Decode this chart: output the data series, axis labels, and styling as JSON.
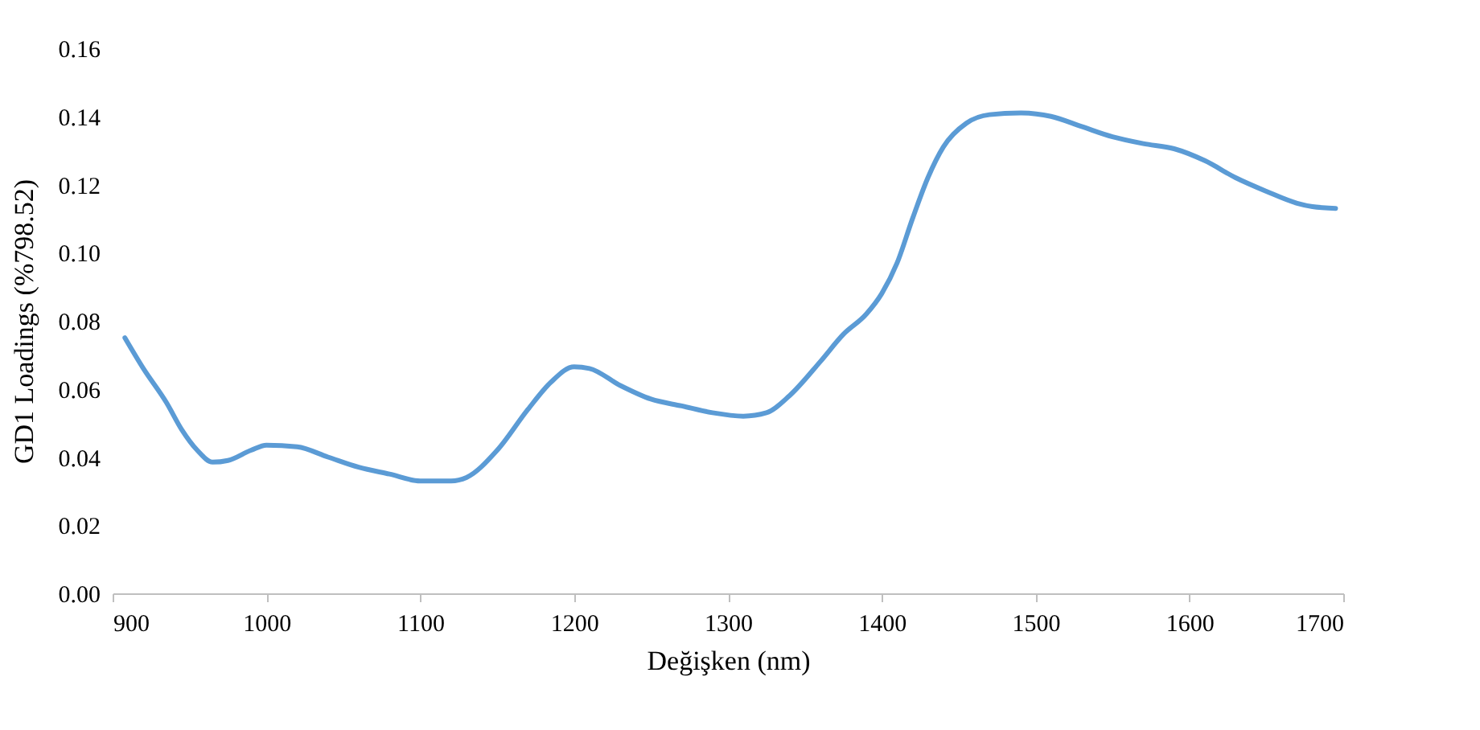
{
  "chart_data": {
    "type": "line",
    "xlabel": "Değişken (nm)",
    "ylabel": "GD1 Loadings (%798.52)",
    "xlim": [
      900,
      1700
    ],
    "xticks": [
      900,
      1000,
      1100,
      1200,
      1300,
      1400,
      1500,
      1600,
      1700
    ],
    "ylim": [
      0,
      0.16
    ],
    "yticks": [
      {
        "value": 0,
        "label": "0.00"
      },
      {
        "value": 0.02,
        "label": "0.02"
      },
      {
        "value": 0.04,
        "label": "0.04"
      },
      {
        "value": 0.06,
        "label": "0.06"
      },
      {
        "value": 0.08,
        "label": "0.08"
      },
      {
        "value": 0.1,
        "label": "0.10"
      },
      {
        "value": 0.12,
        "label": "0.12"
      },
      {
        "value": 0.14,
        "label": "0.14"
      },
      {
        "value": 0.16,
        "label": "0.16"
      }
    ],
    "grid": false,
    "legend": false,
    "x": [
      908,
      920,
      935,
      945,
      955,
      965,
      975,
      990,
      1000,
      1020,
      1040,
      1060,
      1080,
      1100,
      1120,
      1130,
      1150,
      1170,
      1185,
      1200,
      1210,
      1230,
      1250,
      1270,
      1290,
      1310,
      1325,
      1340,
      1360,
      1375,
      1390,
      1400,
      1410,
      1420,
      1430,
      1440,
      1455,
      1470,
      1490,
      1510,
      1530,
      1550,
      1570,
      1590,
      1610,
      1630,
      1650,
      1670,
      1680,
      1695
    ],
    "series": [
      {
        "color": "#5b9bd5",
        "values": [
          0.075,
          0.066,
          0.056,
          0.048,
          0.042,
          0.0385,
          0.039,
          0.042,
          0.0435,
          0.043,
          0.04,
          0.037,
          0.035,
          0.033,
          0.033,
          0.034,
          0.042,
          0.054,
          0.062,
          0.0665,
          0.066,
          0.061,
          0.057,
          0.055,
          0.053,
          0.052,
          0.053,
          0.058,
          0.068,
          0.076,
          0.082,
          0.088,
          0.097,
          0.11,
          0.122,
          0.131,
          0.138,
          0.1405,
          0.141,
          0.14,
          0.137,
          0.134,
          0.132,
          0.1305,
          0.127,
          0.122,
          0.118,
          0.1145,
          0.1135,
          0.113
        ]
      }
    ]
  }
}
